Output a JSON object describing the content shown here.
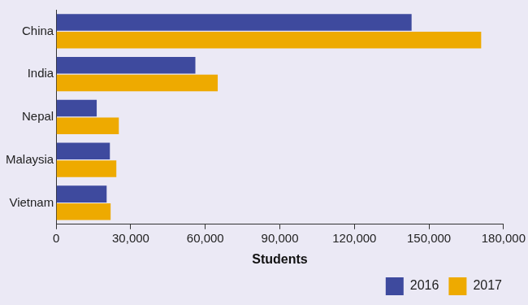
{
  "chart_data": {
    "type": "bar",
    "orientation": "horizontal",
    "x_label": "Students",
    "categories": [
      "China",
      "India",
      "Nepal",
      "Malaysia",
      "Vietnam"
    ],
    "series": [
      {
        "name": "2016",
        "color": "#3e4a9e",
        "values": [
          143000,
          56000,
          16300,
          21600,
          20300
        ]
      },
      {
        "name": "2017",
        "color": "#eeaa00",
        "values": [
          171000,
          65000,
          25200,
          24200,
          21900
        ]
      }
    ],
    "xlim": [
      0,
      180000
    ],
    "xticks": [
      0,
      {
        "value": 30000,
        "label": "30,000"
      },
      {
        "value": 60000,
        "label": "60,000"
      },
      {
        "value": 90000,
        "label": "90,000"
      },
      {
        "value": 120000,
        "label": "120,000"
      },
      {
        "value": 150000,
        "label": "150,000"
      },
      {
        "value": 180000,
        "label": "180,000"
      }
    ],
    "grid": false,
    "legend": "bottom-right"
  }
}
